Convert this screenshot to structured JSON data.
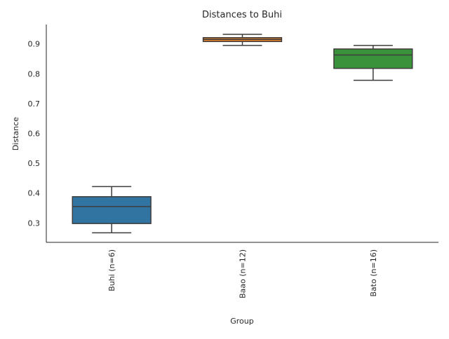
{
  "chart_data": {
    "type": "box",
    "title": "Distances to Buhi",
    "xlabel": "Group",
    "ylabel": "Distance",
    "ylim": [
      0.235,
      0.965
    ],
    "yticks": [
      0.3,
      0.4,
      0.5,
      0.6,
      0.7,
      0.8,
      0.9
    ],
    "ytick_labels": [
      "0.3",
      "0.4",
      "0.5",
      "0.6",
      "0.7",
      "0.8",
      "0.9"
    ],
    "grid": false,
    "categories": [
      "Buhi (n=6)",
      "Baao (n=12)",
      "Bato (n=16)"
    ],
    "boxes": [
      {
        "whisker_low": 0.267,
        "q1": 0.298,
        "median": 0.355,
        "q3": 0.388,
        "whisker_high": 0.422,
        "color": "#3274a1"
      },
      {
        "whisker_low": 0.895,
        "q1": 0.908,
        "median": 0.915,
        "q3": 0.921,
        "whisker_high": 0.932,
        "color": "#e1812c"
      },
      {
        "whisker_low": 0.778,
        "q1": 0.818,
        "median": 0.863,
        "q3": 0.883,
        "whisker_high": 0.895,
        "color": "#3a923a"
      }
    ]
  }
}
